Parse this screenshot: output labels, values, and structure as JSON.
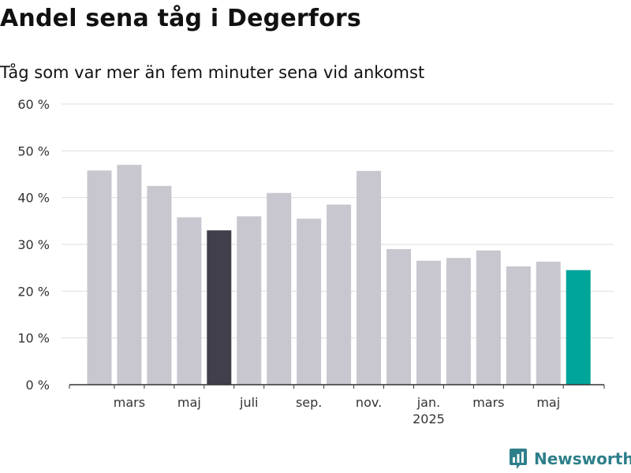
{
  "title": "Andel sena tåg i Degerfors",
  "subtitle": "Tåg som var mer än fem minuter sena vid ankomst",
  "brand": {
    "name": "Newsworthy",
    "icon": "newsworthy-logo-icon",
    "color": "#2e7f8a"
  },
  "colors": {
    "default": "#c8c7cf",
    "highlight": "#413f4b",
    "latest": "#00a59a",
    "grid": "#dddddd",
    "axis": "#333333"
  },
  "chart_data": {
    "type": "bar",
    "title": "Andel sena tåg i Degerfors",
    "subtitle": "Tåg som var mer än fem minuter sena vid ankomst",
    "xlabel": "",
    "ylabel": "",
    "ylim": [
      0,
      60
    ],
    "yticks": [
      0,
      10,
      20,
      30,
      40,
      50,
      60
    ],
    "ytick_labels": [
      "0 %",
      "10 %",
      "20 %",
      "30 %",
      "40 %",
      "50 %",
      "60 %"
    ],
    "grid": true,
    "values": [
      45.8,
      47.0,
      42.5,
      35.8,
      33.0,
      36.0,
      41.0,
      35.5,
      38.5,
      45.7,
      29.0,
      26.5,
      27.1,
      28.7,
      25.3,
      26.3,
      24.5
    ],
    "bar_colors": [
      "default",
      "default",
      "default",
      "default",
      "highlight",
      "default",
      "default",
      "default",
      "default",
      "default",
      "default",
      "default",
      "default",
      "default",
      "default",
      "default",
      "latest"
    ],
    "xtick_labels": [
      {
        "bar": 1,
        "label": "mars"
      },
      {
        "bar": 3,
        "label": "maj"
      },
      {
        "bar": 5,
        "label": "juli"
      },
      {
        "bar": 7,
        "label": "sep."
      },
      {
        "bar": 9,
        "label": "nov."
      },
      {
        "bar": 11,
        "label": "jan.",
        "sublabel": "2025"
      },
      {
        "bar": 13,
        "label": "mars"
      },
      {
        "bar": 15,
        "label": "maj"
      }
    ]
  }
}
